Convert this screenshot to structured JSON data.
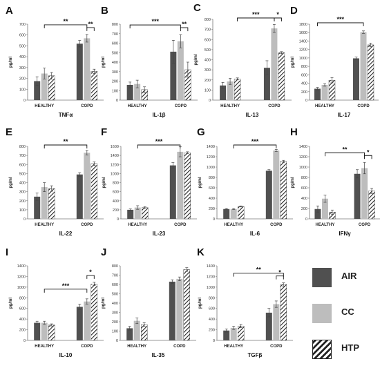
{
  "figure": {
    "legend": [
      {
        "name": "AIR",
        "color": "#505050",
        "pattern": "solid"
      },
      {
        "name": "CC",
        "color": "#bdbdbd",
        "pattern": "solid"
      },
      {
        "name": "HTP",
        "color": "#222222",
        "pattern": "hatched"
      }
    ]
  },
  "chart_data": [
    {
      "type": "bar",
      "panel": "A",
      "title": "TNFα",
      "ylabel": "pg/ml",
      "ylim": [
        0,
        700
      ],
      "yticks": [
        0,
        100,
        200,
        300,
        400,
        500,
        600,
        700
      ],
      "categories": [
        "HEALTHY",
        "COPD"
      ],
      "series": [
        {
          "name": "AIR",
          "values": [
            175,
            520
          ],
          "errors": [
            40,
            30
          ]
        },
        {
          "name": "CC",
          "values": [
            245,
            570
          ],
          "errors": [
            50,
            35
          ]
        },
        {
          "name": "HTP",
          "values": [
            225,
            265
          ],
          "errors": [
            30,
            20
          ]
        }
      ],
      "brackets": [
        {
          "from": [
            0,
            1
          ],
          "to": [
            1,
            1
          ],
          "label": "**"
        },
        {
          "from": [
            1,
            1
          ],
          "to": [
            1,
            2
          ],
          "label": "**"
        }
      ]
    },
    {
      "type": "bar",
      "panel": "B",
      "title": "IL-1β",
      "ylabel": "pg/ml",
      "ylim": [
        0,
        800
      ],
      "yticks": [
        0,
        100,
        200,
        300,
        400,
        500,
        600,
        700,
        800
      ],
      "categories": [
        "HEALTHY",
        "COPD"
      ],
      "series": [
        {
          "name": "AIR",
          "values": [
            160,
            510
          ],
          "errors": [
            30,
            120
          ]
        },
        {
          "name": "CC",
          "values": [
            170,
            620
          ],
          "errors": [
            40,
            70
          ]
        },
        {
          "name": "HTP",
          "values": [
            110,
            320
          ],
          "errors": [
            30,
            80
          ]
        }
      ],
      "brackets": [
        {
          "from": [
            0,
            0
          ],
          "to": [
            1,
            1
          ],
          "label": "***"
        },
        {
          "from": [
            1,
            1
          ],
          "to": [
            1,
            2
          ],
          "label": "**"
        }
      ]
    },
    {
      "type": "bar",
      "panel": "C",
      "title": "IL-13",
      "ylabel": "pg/ml",
      "ylim": [
        0,
        800
      ],
      "yticks": [
        0,
        100,
        200,
        300,
        400,
        500,
        600,
        700,
        800
      ],
      "categories": [
        "HEALTHY",
        "COPD"
      ],
      "series": [
        {
          "name": "AIR",
          "values": [
            145,
            320
          ],
          "errors": [
            30,
            70
          ]
        },
        {
          "name": "CC",
          "values": [
            185,
            710
          ],
          "errors": [
            30,
            40
          ]
        },
        {
          "name": "HTP",
          "values": [
            210,
            470
          ],
          "errors": [
            10,
            10
          ]
        }
      ],
      "brackets": [
        {
          "from": [
            0,
            2
          ],
          "to": [
            1,
            1
          ],
          "label": "***"
        },
        {
          "from": [
            1,
            1
          ],
          "to": [
            1,
            2
          ],
          "label": "*"
        }
      ]
    },
    {
      "type": "bar",
      "panel": "D",
      "title": "IL-17",
      "ylabel": "pg/ml",
      "ylim": [
        0,
        1800
      ],
      "yticks": [
        0,
        200,
        400,
        600,
        800,
        1000,
        1200,
        1400,
        1600,
        1800
      ],
      "categories": [
        "HEALTHY",
        "COPD"
      ],
      "series": [
        {
          "name": "AIR",
          "values": [
            270,
            990
          ],
          "errors": [
            30,
            30
          ]
        },
        {
          "name": "CC",
          "values": [
            360,
            1610
          ],
          "errors": [
            30,
            30
          ]
        },
        {
          "name": "HTP",
          "values": [
            470,
            1310
          ],
          "errors": [
            60,
            40
          ]
        }
      ],
      "brackets": [
        {
          "from": [
            0,
            0
          ],
          "to": [
            1,
            1
          ],
          "label": "***"
        }
      ]
    },
    {
      "type": "bar",
      "panel": "E",
      "title": "IL-22",
      "ylabel": "pg/ml",
      "ylim": [
        0,
        800
      ],
      "yticks": [
        0,
        100,
        200,
        300,
        400,
        500,
        600,
        700,
        800
      ],
      "categories": [
        "HEALTHY",
        "COPD"
      ],
      "series": [
        {
          "name": "AIR",
          "values": [
            245,
            490
          ],
          "errors": [
            40,
            20
          ]
        },
        {
          "name": "CC",
          "values": [
            350,
            730
          ],
          "errors": [
            50,
            25
          ]
        },
        {
          "name": "HTP",
          "values": [
            335,
            610
          ],
          "errors": [
            30,
            20
          ]
        }
      ],
      "brackets": [
        {
          "from": [
            0,
            1
          ],
          "to": [
            1,
            1
          ],
          "label": "**"
        }
      ]
    },
    {
      "type": "bar",
      "panel": "F",
      "title": "IL-23",
      "ylabel": "pg/ml",
      "ylim": [
        0,
        1600
      ],
      "yticks": [
        0,
        200,
        400,
        600,
        800,
        1000,
        1200,
        1400,
        1600
      ],
      "categories": [
        "HEALTHY",
        "COPD"
      ],
      "series": [
        {
          "name": "AIR",
          "values": [
            200,
            1180
          ],
          "errors": [
            20,
            60
          ]
        },
        {
          "name": "CC",
          "values": [
            250,
            1480
          ],
          "errors": [
            40,
            110
          ]
        },
        {
          "name": "HTP",
          "values": [
            250,
            1460
          ],
          "errors": [
            20,
            20
          ]
        }
      ],
      "brackets": [
        {
          "from": [
            0,
            1
          ],
          "to": [
            1,
            1
          ],
          "label": "***"
        }
      ]
    },
    {
      "type": "bar",
      "panel": "G",
      "title": "IL-6",
      "ylabel": "pg/ml",
      "ylim": [
        0,
        1400
      ],
      "yticks": [
        0,
        200,
        400,
        600,
        800,
        1000,
        1200,
        1400
      ],
      "categories": [
        "HEALTHY",
        "COPD"
      ],
      "series": [
        {
          "name": "AIR",
          "values": [
            190,
            930
          ],
          "errors": [
            10,
            20
          ]
        },
        {
          "name": "CC",
          "values": [
            190,
            1320
          ],
          "errors": [
            10,
            20
          ]
        },
        {
          "name": "HTP",
          "values": [
            240,
            1110
          ],
          "errors": [
            10,
            20
          ]
        }
      ],
      "brackets": [
        {
          "from": [
            0,
            1
          ],
          "to": [
            1,
            1
          ],
          "label": "***"
        }
      ]
    },
    {
      "type": "bar",
      "panel": "H",
      "title": "IFNγ",
      "ylabel": "pg/ml",
      "ylim": [
        0,
        1400
      ],
      "yticks": [
        0,
        200,
        400,
        600,
        800,
        1000,
        1200,
        1400
      ],
      "categories": [
        "HEALTHY",
        "COPD"
      ],
      "series": [
        {
          "name": "AIR",
          "values": [
            190,
            870
          ],
          "errors": [
            60,
            80
          ]
        },
        {
          "name": "CC",
          "values": [
            390,
            980
          ],
          "errors": [
            70,
            110
          ]
        },
        {
          "name": "HTP",
          "values": [
            130,
            540
          ],
          "errors": [
            40,
            50
          ]
        }
      ],
      "brackets": [
        {
          "from": [
            0,
            1
          ],
          "to": [
            1,
            1
          ],
          "label": "**"
        },
        {
          "from": [
            1,
            1
          ],
          "to": [
            1,
            2
          ],
          "label": "*"
        }
      ]
    },
    {
      "type": "bar",
      "panel": "I",
      "title": "IL-10",
      "ylabel": "pg/ml",
      "ylim": [
        0,
        1400
      ],
      "yticks": [
        0,
        200,
        400,
        600,
        800,
        1000,
        1200,
        1400
      ],
      "categories": [
        "HEALTHY",
        "COPD"
      ],
      "series": [
        {
          "name": "AIR",
          "values": [
            330,
            630
          ],
          "errors": [
            30,
            50
          ]
        },
        {
          "name": "CC",
          "values": [
            330,
            730
          ],
          "errors": [
            30,
            50
          ]
        },
        {
          "name": "HTP",
          "values": [
            290,
            1060
          ],
          "errors": [
            20,
            30
          ]
        }
      ],
      "brackets": [
        {
          "from": [
            0,
            1
          ],
          "to": [
            1,
            1
          ],
          "label": "***"
        },
        {
          "from": [
            1,
            1
          ],
          "to": [
            1,
            2
          ],
          "label": "*"
        }
      ]
    },
    {
      "type": "bar",
      "panel": "J",
      "title": "IL-35",
      "ylabel": "pg/ml",
      "ylim": [
        0,
        800
      ],
      "yticks": [
        0,
        100,
        200,
        300,
        400,
        500,
        600,
        700,
        800
      ],
      "categories": [
        "HEALTHY",
        "COPD"
      ],
      "series": [
        {
          "name": "AIR",
          "values": [
            130,
            630
          ],
          "errors": [
            20,
            20
          ]
        },
        {
          "name": "CC",
          "values": [
            210,
            660
          ],
          "errors": [
            30,
            20
          ]
        },
        {
          "name": "HTP",
          "values": [
            170,
            760
          ],
          "errors": [
            20,
            20
          ]
        }
      ],
      "brackets": []
    },
    {
      "type": "bar",
      "panel": "K",
      "title": "TGFβ",
      "ylabel": "pg/ml",
      "ylim": [
        0,
        1400
      ],
      "yticks": [
        0,
        200,
        400,
        600,
        800,
        1000,
        1200,
        1400
      ],
      "categories": [
        "HEALTHY",
        "COPD"
      ],
      "series": [
        {
          "name": "AIR",
          "values": [
            185,
            520
          ],
          "errors": [
            30,
            80
          ]
        },
        {
          "name": "CC",
          "values": [
            235,
            680
          ],
          "errors": [
            30,
            60
          ]
        },
        {
          "name": "HTP",
          "values": [
            270,
            1050
          ],
          "errors": [
            30,
            30
          ]
        }
      ],
      "brackets": [
        {
          "from": [
            0,
            1
          ],
          "to": [
            1,
            2
          ],
          "label": "**"
        },
        {
          "from": [
            1,
            1
          ],
          "to": [
            1,
            2
          ],
          "label": "*"
        }
      ]
    }
  ]
}
